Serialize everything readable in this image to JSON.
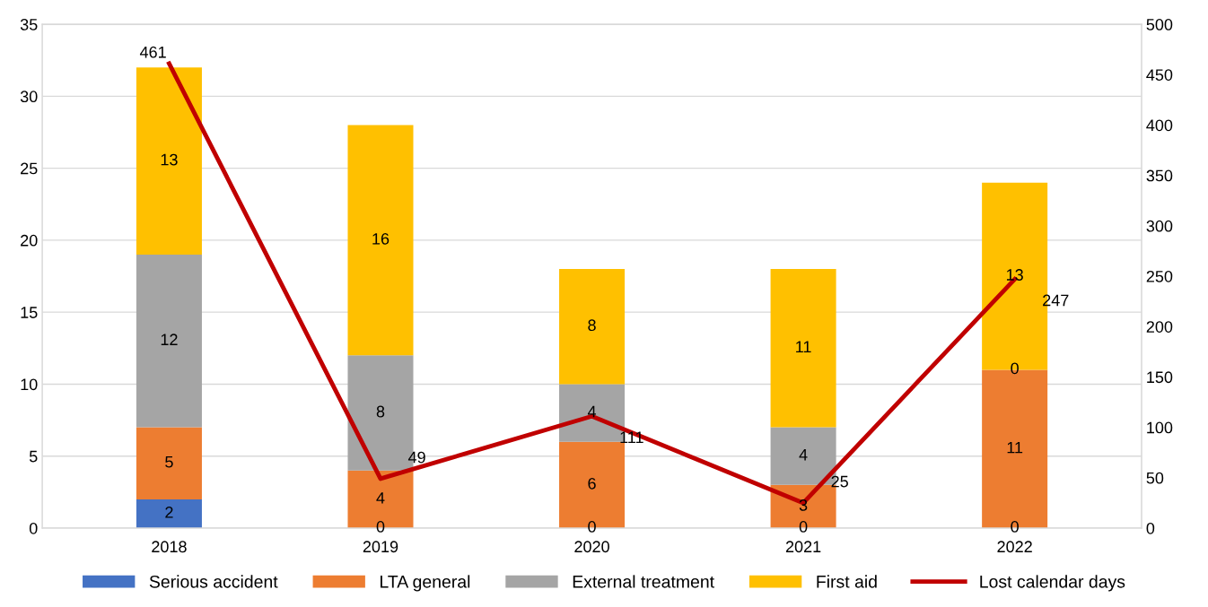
{
  "chart_data": {
    "type": "bar",
    "stacked": true,
    "categories": [
      "2018",
      "2019",
      "2020",
      "2021",
      "2022"
    ],
    "series": [
      {
        "name": "Serious accident",
        "color": "#4472c4",
        "values": [
          2,
          0,
          0,
          0,
          0
        ],
        "value_labels": [
          "2",
          null,
          null,
          null,
          null
        ]
      },
      {
        "name": "LTA general",
        "color": "#ed7d31",
        "values": [
          5,
          4,
          6,
          3,
          11
        ],
        "value_labels": [
          "5",
          "4",
          "6",
          "3",
          "11"
        ]
      },
      {
        "name": "External treatment",
        "color": "#a5a5a5",
        "values": [
          12,
          8,
          4,
          4,
          0
        ],
        "value_labels": [
          "12",
          "8",
          "4",
          "4",
          null
        ]
      },
      {
        "name": "First aid",
        "color": "#ffc000",
        "values": [
          13,
          16,
          8,
          11,
          13
        ],
        "value_labels": [
          "13",
          "16",
          "8",
          "11",
          "13"
        ]
      },
      {
        "name": "Lost calendar days",
        "color": "#c00000",
        "type": "line",
        "axis": "y2",
        "values": [
          461,
          49,
          111,
          25,
          247
        ],
        "value_labels": [
          "461",
          "49",
          "111",
          "25",
          "247"
        ]
      }
    ],
    "annotations": [
      {
        "text": "0",
        "x": "2019",
        "y": 0
      },
      {
        "text": "0",
        "x": "2020",
        "y": 0
      },
      {
        "text": "0",
        "x": "2021",
        "y": 0
      },
      {
        "text": "0",
        "x": "2022",
        "y": 0
      },
      {
        "text": "0",
        "x": "2022",
        "y": 11
      }
    ],
    "ylim": [
      0,
      35
    ],
    "yticks": [
      0,
      5,
      10,
      15,
      20,
      25,
      30,
      35
    ],
    "y2lim": [
      0,
      500
    ],
    "y2ticks": [
      0,
      50,
      100,
      150,
      200,
      250,
      300,
      350,
      400,
      450,
      500
    ],
    "grid": "y",
    "legend": "bottom",
    "marker": "none",
    "line_style": "solid"
  }
}
